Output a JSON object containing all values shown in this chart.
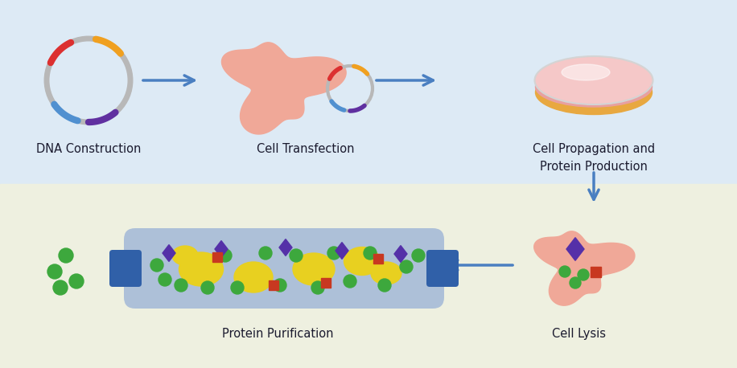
{
  "bg_top": "#ddeaf5",
  "bg_bottom": "#eef0e0",
  "arrow_color": "#4a7fc1",
  "text_color": "#1a1a2e",
  "plasmid_gray": "#b8b8b8",
  "plasmid_red": "#dc3030",
  "plasmid_orange": "#f0a020",
  "plasmid_blue": "#5090d0",
  "plasmid_purple": "#6030a0",
  "cell_fill": "#f0a898",
  "cell_edge": "#e09090",
  "petri_gold": "#e8a840",
  "petri_pink_dark": "#e8a0a0",
  "petri_pink_light": "#f5c8c8",
  "petri_rim": "#d4d4d4",
  "purif_bg": "#adc0d8",
  "purif_handle": "#3060a8",
  "yellow_blob": "#e8d020",
  "green_dot": "#3da83d",
  "purple_diamond": "#5530a8",
  "red_square": "#c83820",
  "label_dna": "DNA Construction",
  "label_transfection": "Cell Transfection",
  "label_propagation": "Cell Propagation and\nProtein Production",
  "label_lysis": "Cell Lysis",
  "label_purification": "Protein Purification"
}
